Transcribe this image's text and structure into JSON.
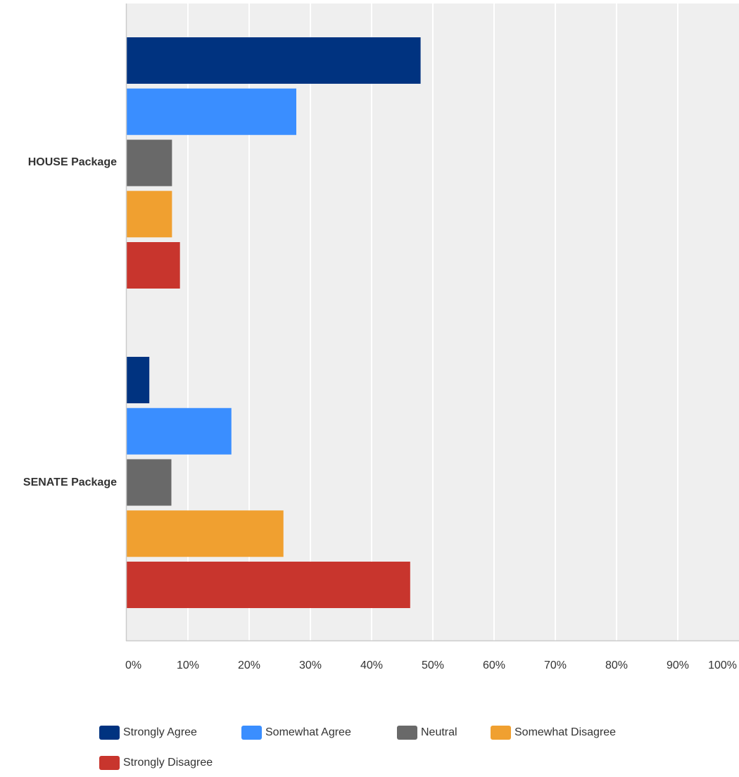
{
  "chart_data": {
    "type": "bar",
    "orientation": "horizontal",
    "title": "",
    "xlabel": "",
    "ylabel": "",
    "xlim": [
      0,
      100
    ],
    "grid": true,
    "legend_position": "bottom",
    "categories": [
      "HOUSE Package",
      "SENATE Package"
    ],
    "ticks": [
      "0%",
      "10%",
      "20%",
      "30%",
      "40%",
      "50%",
      "60%",
      "70%",
      "80%",
      "90%",
      "100%"
    ],
    "series": [
      {
        "name": "Strongly Agree",
        "color": "#003380",
        "values": [
          48.0,
          3.7
        ]
      },
      {
        "name": "Somewhat Agree",
        "color": "#3a8eff",
        "values": [
          27.7,
          17.1
        ]
      },
      {
        "name": "Neutral",
        "color": "#696969",
        "values": [
          7.4,
          7.3
        ]
      },
      {
        "name": "Somewhat Disagree",
        "color": "#f0a030",
        "values": [
          7.4,
          25.6
        ]
      },
      {
        "name": "Strongly Disagree",
        "color": "#c8352d",
        "values": [
          8.7,
          46.3
        ]
      }
    ],
    "plot_background": "#efefef"
  }
}
